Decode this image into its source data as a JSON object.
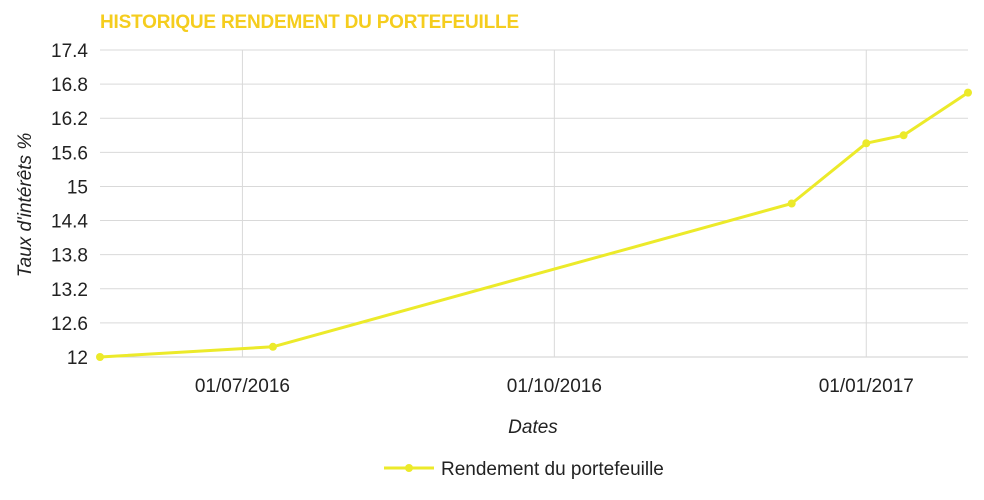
{
  "chart_data": {
    "type": "line",
    "title": "HISTORIQUE RENDEMENT DU PORTEFEUILLE",
    "xlabel": "Dates",
    "ylabel": "Taux d'intérêts %",
    "xlim": [
      "2016-05-20",
      "2017-01-31"
    ],
    "ylim": [
      12,
      17.4
    ],
    "yticks": [
      12,
      12.6,
      13.2,
      13.8,
      14.4,
      15,
      15.6,
      16.2,
      16.8,
      17.4
    ],
    "yticklabels": [
      "12",
      "12.6",
      "13.2",
      "13.8",
      "14.4",
      "15",
      "15.6",
      "16.2",
      "16.8",
      "17.4"
    ],
    "xticks": [
      "2016-07-01",
      "2016-10-01",
      "2017-01-01"
    ],
    "xticklabels": [
      "01/07/2016",
      "01/10/2016",
      "01/01/2017"
    ],
    "grid": true,
    "legend_position": "bottom",
    "series": [
      {
        "name": "Rendement du portefeuille",
        "color": "#ecea2a",
        "x": [
          "2016-05-20",
          "2016-07-10",
          "2016-12-10",
          "2017-01-01",
          "2017-01-12",
          "2017-01-31"
        ],
        "y": [
          12.0,
          12.18,
          14.7,
          15.76,
          15.9,
          16.65
        ]
      }
    ]
  }
}
